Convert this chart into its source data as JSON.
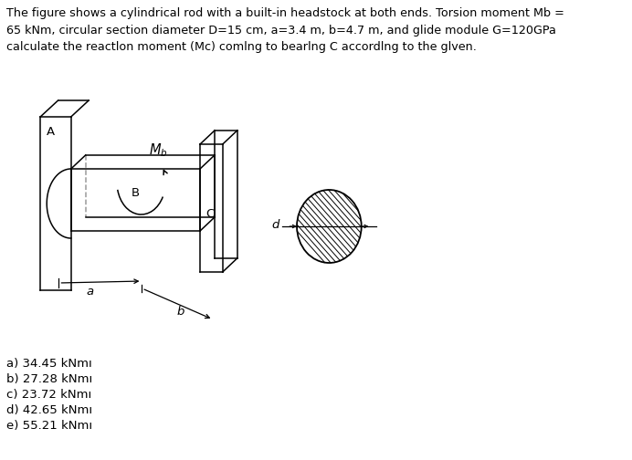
{
  "title_text": "The figure shows a cylindrical rod with a built-in headstock at both ends. Torsion moment Mb =\n65 kNm, circular section diameter D=15 cm, a=3.4 m, b=4.7 m, and glide module G=120GPa\ncalculate the reactlon moment (Mc) comlng to bearlng C accordlng to the glven.",
  "choices": [
    "a) 34.45 kNmı",
    "b) 27.28 kNmı",
    "c) 23.72 kNmı",
    "d) 42.65 kNmı",
    "e) 55.21 kNmı"
  ],
  "bg_color": "#ffffff",
  "text_color": "#000000",
  "line_color": "#000000",
  "font_size_title": 9.2,
  "font_size_choices": 9.5,
  "font_size_labels": 9.5
}
